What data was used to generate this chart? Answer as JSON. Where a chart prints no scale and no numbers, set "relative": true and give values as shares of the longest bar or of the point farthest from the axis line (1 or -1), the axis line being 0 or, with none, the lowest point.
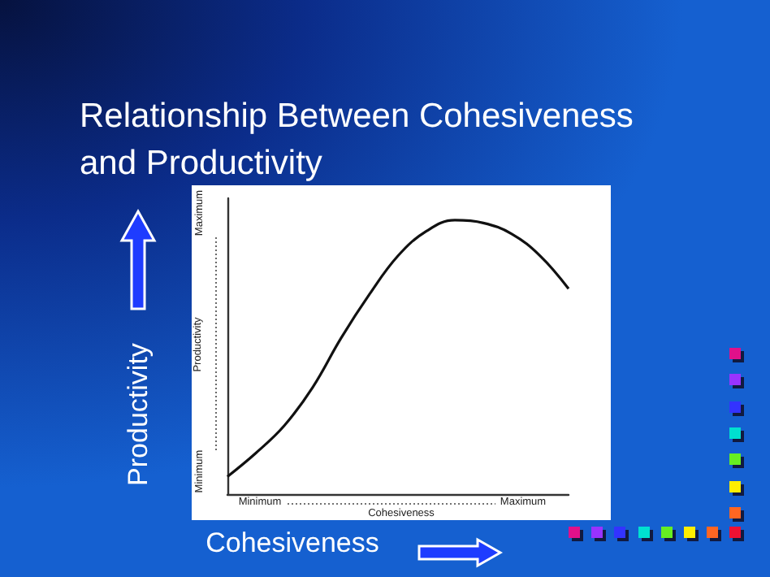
{
  "chart_data": {
    "type": "line",
    "title": "Relationship Between Cohesiveness and Productivity",
    "xlabel": "Cohesiveness",
    "ylabel": "Productivity",
    "relative": true,
    "categories": [
      null,
      null,
      null,
      null,
      null,
      null,
      null,
      null,
      null,
      null,
      null,
      null,
      null
    ],
    "series": [
      {
        "color": "#111111",
        "values": [
          0.064,
          0.15,
          0.25,
          0.39,
          0.57,
          0.73,
          0.87,
          0.96,
          1,
          0.99,
          0.95,
          0.87,
          0.75
        ]
      }
    ],
    "annotations": [
      "Productivity",
      "Cohesiveness",
      "Minimum",
      "Maximum",
      "Minimum",
      "Maximum"
    ],
    "grid": false,
    "marker": "none",
    "line_style": "solid"
  }
}
